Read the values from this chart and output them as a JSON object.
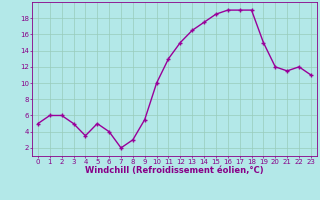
{
  "x": [
    0,
    1,
    2,
    3,
    4,
    5,
    6,
    7,
    8,
    9,
    10,
    11,
    12,
    13,
    14,
    15,
    16,
    17,
    18,
    19,
    20,
    21,
    22,
    23
  ],
  "y": [
    5,
    6,
    6,
    5,
    3.5,
    5,
    4,
    2,
    3,
    5.5,
    10,
    13,
    15,
    16.5,
    17.5,
    18.5,
    19,
    19,
    19,
    15,
    12,
    11.5,
    12,
    11
  ],
  "line_color": "#990099",
  "marker": "+",
  "bg_color": "#b3e8e8",
  "grid_color": "#99ccbb",
  "xlabel": "Windchill (Refroidissement éolien,°C)",
  "yticks": [
    2,
    4,
    6,
    8,
    10,
    12,
    14,
    16,
    18
  ],
  "ylim": [
    1,
    20
  ],
  "xlim": [
    -0.5,
    23.5
  ],
  "tick_color": "#880088",
  "xlabel_color": "#880088",
  "label_fontsize": 5.0,
  "xlabel_fontsize": 6.0
}
